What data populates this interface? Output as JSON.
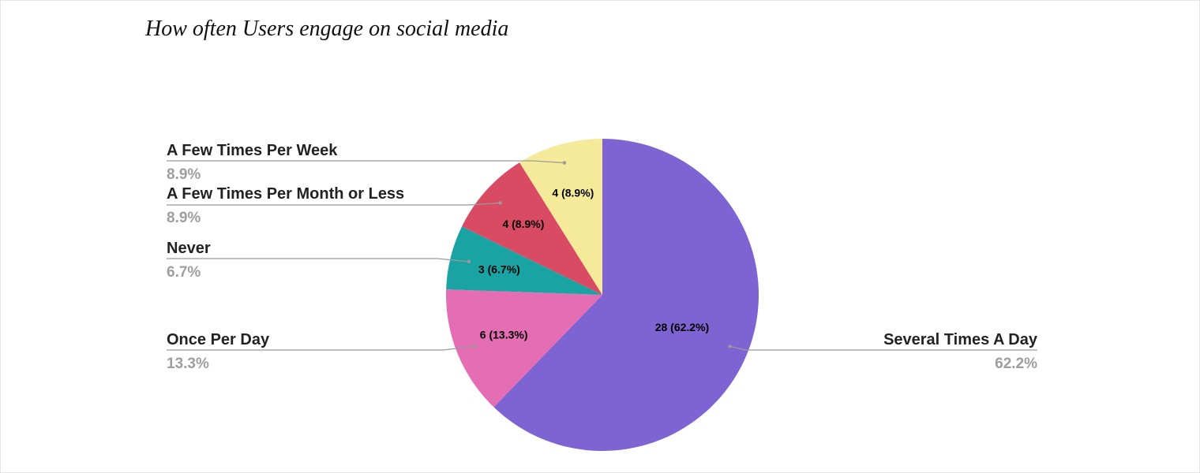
{
  "chart_data": {
    "type": "pie",
    "title": "How often Users engage on social media",
    "total": 45,
    "start_angle_deg": 0,
    "direction": "clockwise",
    "slices": [
      {
        "label": "Several Times A Day",
        "value": 28,
        "percent": 62.2,
        "slice_label": "28 (62.2%)",
        "legend_percent": "62.2%",
        "color": "#7e63d2",
        "side": "right"
      },
      {
        "label": "Once Per Day",
        "value": 6,
        "percent": 13.3,
        "slice_label": "6 (13.3%)",
        "legend_percent": "13.3%",
        "color": "#e56db3",
        "side": "left"
      },
      {
        "label": "Never",
        "value": 3,
        "percent": 6.7,
        "slice_label": "3 (6.7%)",
        "legend_percent": "6.7%",
        "color": "#1aa3a3",
        "side": "left"
      },
      {
        "label": "A Few Times Per Month or Less",
        "value": 4,
        "percent": 8.9,
        "slice_label": "4 (8.9%)",
        "legend_percent": "8.9%",
        "color": "#d94b63",
        "side": "left"
      },
      {
        "label": "A Few Times Per Week",
        "value": 4,
        "percent": 8.9,
        "slice_label": "4 (8.9%)",
        "legend_percent": "8.9%",
        "color": "#f5ea9a",
        "side": "left"
      }
    ],
    "legend_placement": "callouts"
  }
}
